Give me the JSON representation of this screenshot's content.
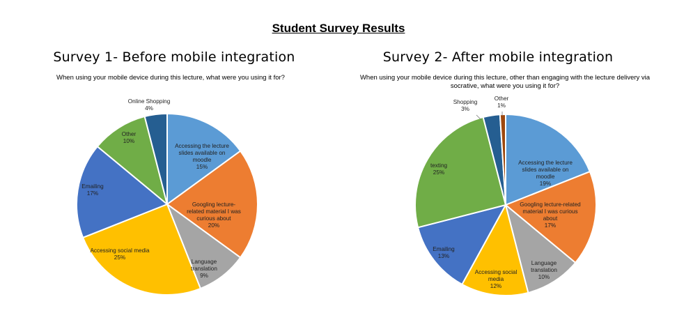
{
  "page_title": "Student Survey Results",
  "chart_data": [
    {
      "type": "pie",
      "title": "Survey 1- Before mobile integration",
      "subtitle": "When using your mobile device during this lecture, what were you using it for?",
      "categories": [
        "Accessing the lecture slides available on moodle",
        "Googling lecture-related material I was curious about",
        "Language translation",
        "Accessing social media",
        "Emailing",
        "Other",
        "Online Shopping"
      ],
      "values": [
        15,
        20,
        9,
        25,
        17,
        10,
        4
      ],
      "labels": [
        [
          "Accessing the lecture",
          "slides available on",
          "moodle",
          "15%"
        ],
        [
          "Googling lecture-",
          "related material I was",
          "curious about",
          "20%"
        ],
        [
          "Language",
          "translation",
          "9%"
        ],
        [
          "Accessing social media",
          "25%"
        ],
        [
          "Emailing",
          "17%"
        ],
        [
          "Other",
          "10%"
        ],
        [
          "Online Shopping",
          "4%"
        ]
      ],
      "colors": [
        "#5b9bd5",
        "#ed7d31",
        "#a5a5a5",
        "#ffc000",
        "#4472c4",
        "#70ad47",
        "#255e91"
      ]
    },
    {
      "type": "pie",
      "title": "Survey 2- After mobile integration",
      "subtitle": "When using your mobile device during this lecture, other than engaging with the lecture delivery via socrative, what were you using it for?",
      "categories": [
        "Accessing the lecture slides available on moodle",
        "Googling lecture-related material I was curious about",
        "Language translation",
        "Accessing social media",
        "Emailing",
        "texting",
        "Shopping",
        "Other"
      ],
      "values": [
        19,
        17,
        10,
        12,
        13,
        25,
        3,
        1
      ],
      "labels": [
        [
          "Accessing the lecture",
          "slides available on",
          "moodle",
          "19%"
        ],
        [
          "Googling lecture-related",
          "material I was curious",
          "about",
          "17%"
        ],
        [
          "Language",
          "translation",
          "10%"
        ],
        [
          "Accessing social",
          "media",
          "12%"
        ],
        [
          "Emailing",
          "13%"
        ],
        [
          "texting",
          "25%"
        ],
        [
          "Shopping",
          "3%"
        ],
        [
          "Other",
          "1%"
        ]
      ],
      "colors": [
        "#5b9bd5",
        "#ed7d31",
        "#a5a5a5",
        "#ffc000",
        "#4472c4",
        "#70ad47",
        "#255e91",
        "#9e480e"
      ]
    }
  ]
}
